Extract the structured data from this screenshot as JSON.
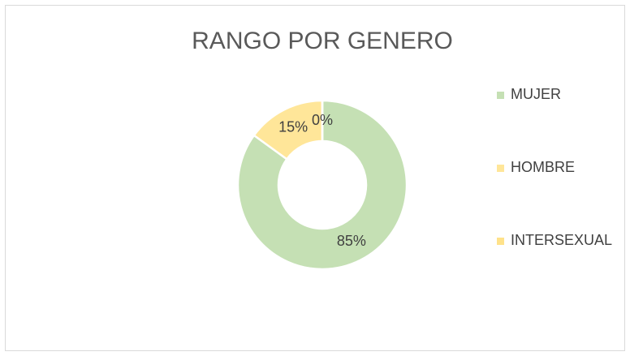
{
  "chart_data": {
    "type": "pie",
    "donut": true,
    "title": "RANGO POR GENERO",
    "categories": [
      "MUJER",
      "HOMBRE",
      "INTERSEXUAL"
    ],
    "values": [
      85,
      15,
      0
    ],
    "value_labels": [
      "85%",
      "15%",
      "0%"
    ],
    "colors": [
      "#c5e0b4",
      "#ffe699",
      "#ffe28a"
    ],
    "legend": "right"
  }
}
